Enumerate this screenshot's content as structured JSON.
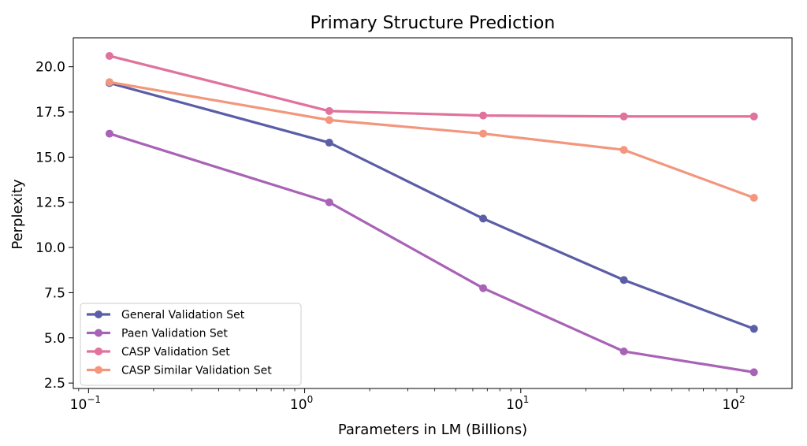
{
  "chart_data": {
    "type": "line",
    "title": "Primary Structure Prediction",
    "xlabel": "Parameters in LM (Billions)",
    "ylabel": "Perplexity",
    "xscale": "log",
    "xlim": [
      0.085,
      180
    ],
    "ylim": [
      2.2,
      21.6
    ],
    "x": [
      0.125,
      1.3,
      6.7,
      30,
      120
    ],
    "x_ticks": [
      {
        "value": 0.1,
        "base": "10",
        "exp": "−1"
      },
      {
        "value": 1,
        "base": "10",
        "exp": "0"
      },
      {
        "value": 10,
        "base": "10",
        "exp": "1"
      },
      {
        "value": 100,
        "base": "10",
        "exp": "2"
      }
    ],
    "y_ticks": [
      "2.5",
      "5.0",
      "7.5",
      "10.0",
      "12.5",
      "15.0",
      "17.5",
      "20.0"
    ],
    "grid": false,
    "legend_position": "lower-left",
    "series": [
      {
        "name": "General Validation Set",
        "color": "#5b5ea6",
        "values": [
          19.1,
          15.8,
          11.6,
          8.2,
          5.5
        ]
      },
      {
        "name": "Paen Validation Set",
        "color": "#a863b6",
        "values": [
          16.3,
          12.5,
          7.75,
          4.25,
          3.1
        ]
      },
      {
        "name": "CASP Validation Set",
        "color": "#e0729c",
        "values": [
          20.6,
          17.55,
          17.3,
          17.25,
          17.25
        ]
      },
      {
        "name": "CASP Similar Validation Set",
        "color": "#f2977d",
        "values": [
          19.15,
          17.05,
          16.3,
          15.4,
          12.75
        ]
      }
    ]
  }
}
